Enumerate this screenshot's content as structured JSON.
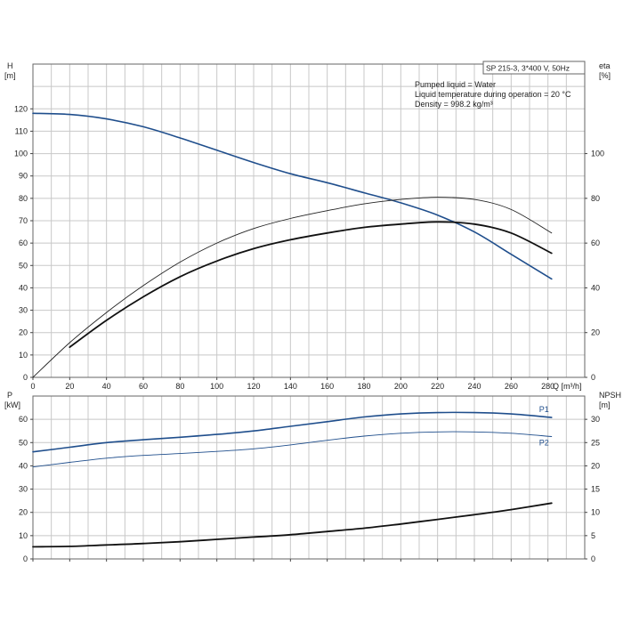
{
  "chart_data": [
    {
      "type": "line",
      "id": "upper",
      "title_box": "SP 215-3, 3*400 V, 50Hz",
      "info": [
        "Pumped liquid = Water",
        "Liquid temperature during operation = 20 °C",
        "Density = 998.2 kg/m³"
      ],
      "xlabel": "Q [m³/h]",
      "xlim": [
        0,
        300
      ],
      "xticks": [
        0,
        20,
        40,
        60,
        80,
        100,
        120,
        140,
        160,
        180,
        200,
        220,
        240,
        260,
        280
      ],
      "left_axis": {
        "label_top": "H",
        "label_unit": "[m]",
        "ylim": [
          0,
          140
        ],
        "ticks": [
          0,
          10,
          20,
          30,
          40,
          50,
          60,
          70,
          80,
          90,
          100,
          110,
          120
        ]
      },
      "right_axis": {
        "label_top": "eta",
        "label_unit": "[%]",
        "ylim": [
          0,
          140
        ],
        "ticks": [
          0,
          20,
          40,
          60,
          80,
          100
        ]
      },
      "series": [
        {
          "key": "H",
          "axis": "left",
          "color": "#1f4e8c",
          "width": 1.6,
          "x": [
            0,
            20,
            40,
            60,
            80,
            100,
            120,
            140,
            160,
            180,
            200,
            220,
            240,
            260,
            282
          ],
          "y": [
            118,
            117.5,
            115.5,
            112,
            107,
            101.5,
            96,
            91,
            87,
            82.5,
            78,
            72.5,
            65,
            55,
            44
          ]
        },
        {
          "key": "eta1",
          "axis": "right",
          "color": "#222222",
          "width": 0.9,
          "x": [
            0,
            20,
            40,
            60,
            80,
            100,
            120,
            140,
            160,
            180,
            200,
            220,
            240,
            260,
            282
          ],
          "y": [
            0,
            15.5,
            29,
            41,
            51.5,
            60,
            66.5,
            71,
            74.5,
            77.5,
            79.5,
            80.5,
            79.5,
            75,
            64.5
          ]
        },
        {
          "key": "eta2",
          "axis": "right",
          "color": "#111111",
          "width": 1.8,
          "x": [
            20,
            40,
            60,
            80,
            100,
            120,
            140,
            160,
            180,
            200,
            220,
            240,
            260,
            282
          ],
          "y": [
            13.5,
            25.5,
            36,
            45,
            52,
            57.5,
            61.5,
            64.5,
            67,
            68.5,
            69.5,
            68.5,
            64.5,
            55.5
          ]
        }
      ]
    },
    {
      "type": "line",
      "id": "lower",
      "xlim": [
        0,
        300
      ],
      "xticks": [
        0,
        20,
        40,
        60,
        80,
        100,
        120,
        140,
        160,
        180,
        200,
        220,
        240,
        260,
        280
      ],
      "left_axis": {
        "label_top": "P",
        "label_unit": "[kW]",
        "ylim": [
          0,
          70
        ],
        "ticks": [
          0,
          10,
          20,
          30,
          40,
          50,
          60
        ]
      },
      "right_axis": {
        "label_top": "NPSH",
        "label_unit": "[m]",
        "ylim": [
          0,
          35
        ],
        "ticks": [
          0,
          5,
          10,
          15,
          20,
          25,
          30
        ]
      },
      "series": [
        {
          "key": "P1",
          "label": "P1",
          "axis": "left",
          "color": "#1f4e8c",
          "width": 1.6,
          "x": [
            0,
            20,
            40,
            60,
            80,
            100,
            120,
            140,
            160,
            180,
            200,
            220,
            240,
            260,
            282
          ],
          "y": [
            46,
            48,
            50,
            51.2,
            52.3,
            53.5,
            55,
            57,
            59,
            61,
            62.3,
            62.9,
            62.9,
            62.3,
            60.8
          ]
        },
        {
          "key": "P2",
          "label": "P2",
          "axis": "left",
          "color": "#1f4e8c",
          "width": 0.9,
          "x": [
            0,
            20,
            40,
            60,
            80,
            100,
            120,
            140,
            160,
            180,
            200,
            220,
            240,
            260,
            282
          ],
          "y": [
            39.5,
            41.5,
            43.3,
            44.5,
            45.3,
            46.2,
            47.3,
            49,
            51,
            52.8,
            54,
            54.6,
            54.6,
            54,
            52.6
          ]
        },
        {
          "key": "NPSH",
          "axis": "right",
          "color": "#111111",
          "width": 1.8,
          "x": [
            0,
            20,
            40,
            60,
            80,
            100,
            120,
            140,
            160,
            180,
            200,
            220,
            240,
            260,
            282
          ],
          "y": [
            2.6,
            2.7,
            3.0,
            3.3,
            3.7,
            4.2,
            4.7,
            5.2,
            5.9,
            6.6,
            7.5,
            8.5,
            9.5,
            10.6,
            12
          ]
        }
      ]
    }
  ]
}
